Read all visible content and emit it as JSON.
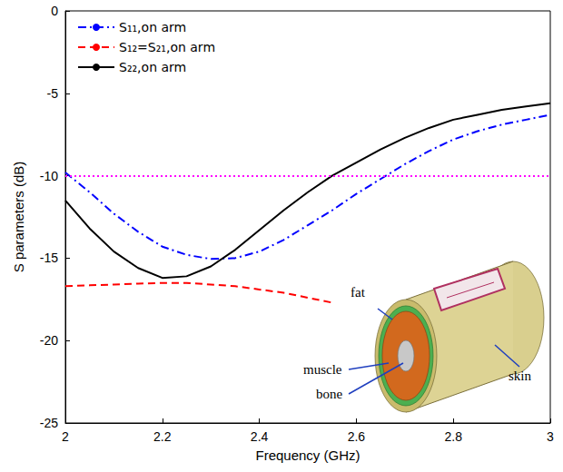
{
  "chart_data": {
    "type": "line",
    "xlabel": "Frequency (GHz)",
    "ylabel": "S parameters (dB)",
    "x": [
      2.0,
      2.05,
      2.1,
      2.15,
      2.2,
      2.25,
      2.3,
      2.35,
      2.4,
      2.45,
      2.5,
      2.55,
      2.6,
      2.65,
      2.7,
      2.75,
      2.8,
      2.85,
      2.9,
      2.95,
      3.0
    ],
    "series": [
      {
        "name": "S₁₁,on arm",
        "color": "#0000ff",
        "line_style": "dashdot",
        "values": [
          -9.8,
          -11.0,
          -12.3,
          -13.4,
          -14.3,
          -14.8,
          -15.05,
          -15.0,
          -14.6,
          -13.9,
          -13.0,
          -12.1,
          -11.1,
          -10.2,
          -9.3,
          -8.5,
          -7.8,
          -7.3,
          -6.9,
          -6.6,
          -6.3
        ]
      },
      {
        "name": "S₁₂=S₂₁,on arm",
        "color": "#ff0000",
        "line_style": "dashed",
        "values": [
          -16.7,
          -16.65,
          -16.6,
          -16.55,
          -16.5,
          -16.5,
          -16.6,
          -16.7,
          -16.9,
          -17.1,
          -17.4,
          -17.7,
          null,
          null,
          null,
          null,
          null,
          null,
          null,
          null,
          null
        ]
      },
      {
        "name": "S₂₂,on arm",
        "color": "#000000",
        "line_style": "solid",
        "values": [
          -11.5,
          -13.2,
          -14.6,
          -15.6,
          -16.2,
          -16.1,
          -15.5,
          -14.5,
          -13.3,
          -12.1,
          -11.0,
          -10.0,
          -9.2,
          -8.4,
          -7.7,
          -7.1,
          -6.6,
          -6.3,
          -6.0,
          -5.8,
          -5.6
        ]
      }
    ],
    "xlim": [
      2,
      3
    ],
    "xticks": [
      2,
      2.2,
      2.4,
      2.6,
      2.8,
      3
    ],
    "ylim": [
      -25,
      0
    ],
    "yticks": [
      -25,
      -20,
      -15,
      -10,
      -5,
      0
    ],
    "reference_lines": [
      {
        "value": -10,
        "color": "#ff00ff",
        "line_style": "dotted"
      }
    ],
    "annotations": [
      "fat",
      "muscle",
      "bone",
      "skin"
    ],
    "legend": "upper left",
    "grid": false
  }
}
